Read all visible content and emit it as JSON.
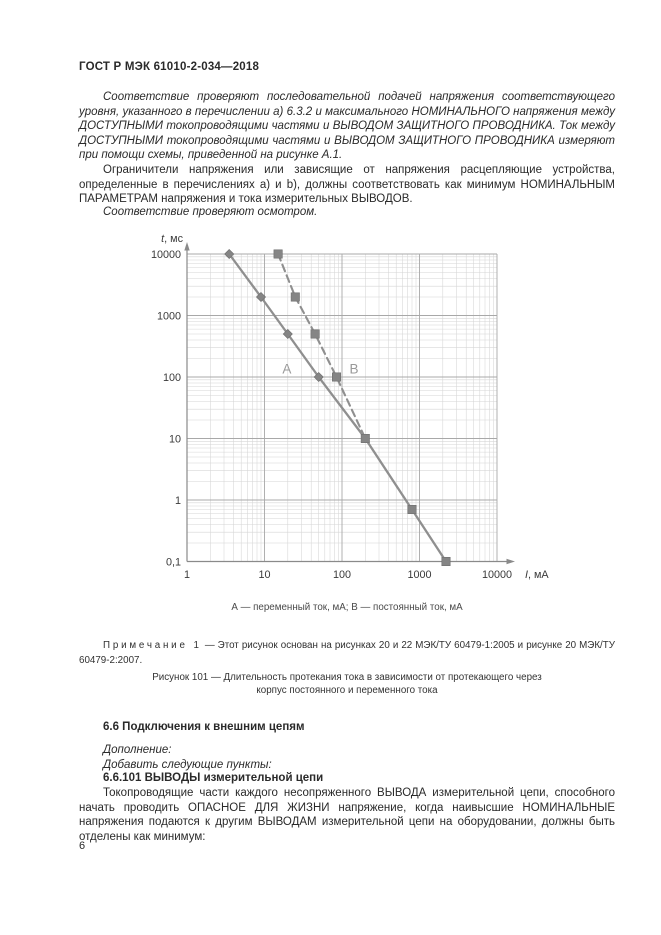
{
  "header": {
    "title": "ГОСТ Р МЭК 61010-2-034—2018"
  },
  "body": {
    "p1": "Соответствие проверяют последовательной подачей напряжения соответствующего уровня, указанного в перечислении а) 6.3.2 и максимального НОМИНАЛЬНОГО напряжения между ДОСТУПНЫМИ токопроводящими частями и ВЫВОДОМ ЗАЩИТНОГО ПРОВОДНИКА. Ток между ДОСТУПНЫМИ токопроводящими частями и ВЫВОДОМ ЗАЩИТНОГО ПРОВОДНИКА измеряют при помощи схемы, приведенной на рисунке А.1.",
    "p2": "Ограничители напряжения или зависящие от напряжения расцепляющие устройства, определенные в перечислениях а) и b), должны соответствовать как минимум НОМИНАЛЬНЫМ ПАРАМЕТРАМ напряжения и тока измерительных ВЫВОДОВ.",
    "p3": "Соответствие проверяют осмотром."
  },
  "figure": {
    "legend": "А — переменный ток, мА; В — постоянный ток, мА",
    "note_label": "Примечание 1",
    "note_text": "— Этот рисунок основан на рисунках 20 и 22 МЭК/ТУ 60479-1:2005 и рисунке 20 МЭК/ТУ 60479-2:2007.",
    "caption": "Рисунок 101 — Длительность протекания тока в зависимости от протекающего через корпус постоянного и переменного тока"
  },
  "sections": {
    "h66": "6.6 Подключения к внешним цепям",
    "add1": "Дополнение:",
    "add2": "Добавить следующие пункты:",
    "h66101": "6.6.101 ВЫВОДЫ измерительной цепи",
    "p4": "Токопроводящие части каждого несопряженного ВЫВОДА измерительной цепи, способного начать проводить ОПАСНОЕ ДЛЯ ЖИЗНИ напряжение, когда наивысшие НОМИНАЛЬНЫЕ напряжения подаются к другим ВЫВОДАМ измерительной цепи на оборудовании, должны быть отделены как минимум:"
  },
  "footer": {
    "page_number": "6"
  },
  "chart_data": {
    "type": "line",
    "x_scale": "log",
    "y_scale": "log",
    "xlabel_var": "I",
    "xlabel_rest": ", мА",
    "ylabel_var": "t",
    "ylabel_rest": ", мс",
    "xlim": [
      1,
      10000
    ],
    "ylim": [
      0.1,
      10000
    ],
    "grid": "log-log, major and minor gridlines on",
    "x_ticks": [
      {
        "v": 1,
        "label": "1"
      },
      {
        "v": 10,
        "label": "10"
      },
      {
        "v": 100,
        "label": "100"
      },
      {
        "v": 1000,
        "label": "1000"
      },
      {
        "v": 10000,
        "label": "10000"
      }
    ],
    "y_ticks": [
      {
        "v": 10000,
        "label": "10000"
      },
      {
        "v": 1000,
        "label": "1000"
      },
      {
        "v": 100,
        "label": "100"
      },
      {
        "v": 10,
        "label": "10"
      },
      {
        "v": 1,
        "label": "1"
      },
      {
        "v": 0.1,
        "label": "0,1"
      }
    ],
    "series": [
      {
        "name": "A",
        "label": "А",
        "meaning": "переменный ток, мА",
        "line": "solid",
        "marker": "diamond",
        "line_points": [
          [
            3.5,
            10000
          ],
          [
            9,
            2000
          ],
          [
            20,
            500
          ],
          [
            50,
            100
          ],
          [
            200,
            10
          ],
          [
            800,
            0.7
          ],
          [
            2200,
            0.1
          ]
        ],
        "marker_points": [
          [
            3.5,
            10000
          ],
          [
            9,
            2000
          ],
          [
            20,
            500
          ],
          [
            50,
            100
          ]
        ]
      },
      {
        "name": "B",
        "label": "В",
        "meaning": "постоянный ток, мА",
        "line": "dashed",
        "marker": "square",
        "line_points": [
          [
            15,
            10000
          ],
          [
            25,
            2000
          ],
          [
            45,
            500
          ],
          [
            85,
            100
          ],
          [
            200,
            10
          ]
        ],
        "marker_points": [
          [
            15,
            10000
          ],
          [
            25,
            2000
          ],
          [
            45,
            500
          ],
          [
            85,
            100
          ],
          [
            200,
            10
          ],
          [
            800,
            0.7
          ],
          [
            2200,
            0.1
          ]
        ]
      }
    ],
    "annotations": [
      {
        "text": "А",
        "at": [
          17,
          115
        ]
      },
      {
        "text": "В",
        "at": [
          125,
          115
        ]
      }
    ],
    "colors": {
      "line": "#8f8f8f",
      "marker": "#858585",
      "marker_edge": "#6e6e6e",
      "grid_minor": "#d6d6d6",
      "grid_major": "#a8a8a8",
      "axis": "#8a8a8a",
      "tick_text": "#3a3a3a",
      "series_label": "#9a9a9a"
    }
  }
}
